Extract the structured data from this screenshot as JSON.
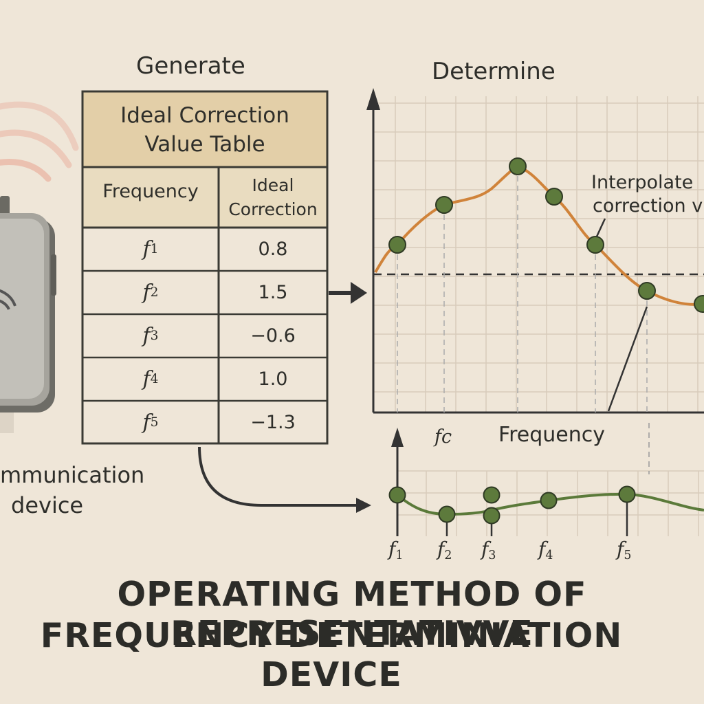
{
  "labels": {
    "generate": "Generate",
    "determine": "Determine",
    "interpolated_line1": "Interpolate",
    "interpolated_line2": "correction v",
    "frequency_axis": "Frequency",
    "fc": "fc",
    "device_line1": "mmunication",
    "device_line2": "device"
  },
  "table": {
    "title_line1": "Ideal Correction",
    "title_line2": "Value Table",
    "col_frequency": "Frequency",
    "col_ideal_line1": "Ideal",
    "col_ideal_line2": "Correction",
    "rows": [
      {
        "f": "f",
        "sub": "1",
        "value": "0.8"
      },
      {
        "f": "f",
        "sub": "2",
        "value": "1.5"
      },
      {
        "f": "f",
        "sub": "3",
        "value": "−0.6"
      },
      {
        "f": "f",
        "sub": "4",
        "value": "1.0"
      },
      {
        "f": "f",
        "sub": "5",
        "value": "−1.3"
      }
    ]
  },
  "bottom_axis_labels": [
    {
      "f": "f",
      "sub": "1"
    },
    {
      "f": "f",
      "sub": "2"
    },
    {
      "f": "f",
      "sub": "3"
    },
    {
      "f": "f",
      "sub": "4"
    },
    {
      "f": "f",
      "sub": "5"
    }
  ],
  "title": {
    "line1": "OPERATING METHOD OF REPRESENTATIVVE",
    "line2": "FREQUENCY DETERMINIATION DEVICE"
  },
  "colors": {
    "background": "#efe6d8",
    "table_header": "#e3cfa8",
    "curve_orange": "#d0833a",
    "curve_green": "#5b7a3a",
    "point_green": "#5d7a3c",
    "signal_red": "#e7a596",
    "ink": "#2e2e2a"
  }
}
